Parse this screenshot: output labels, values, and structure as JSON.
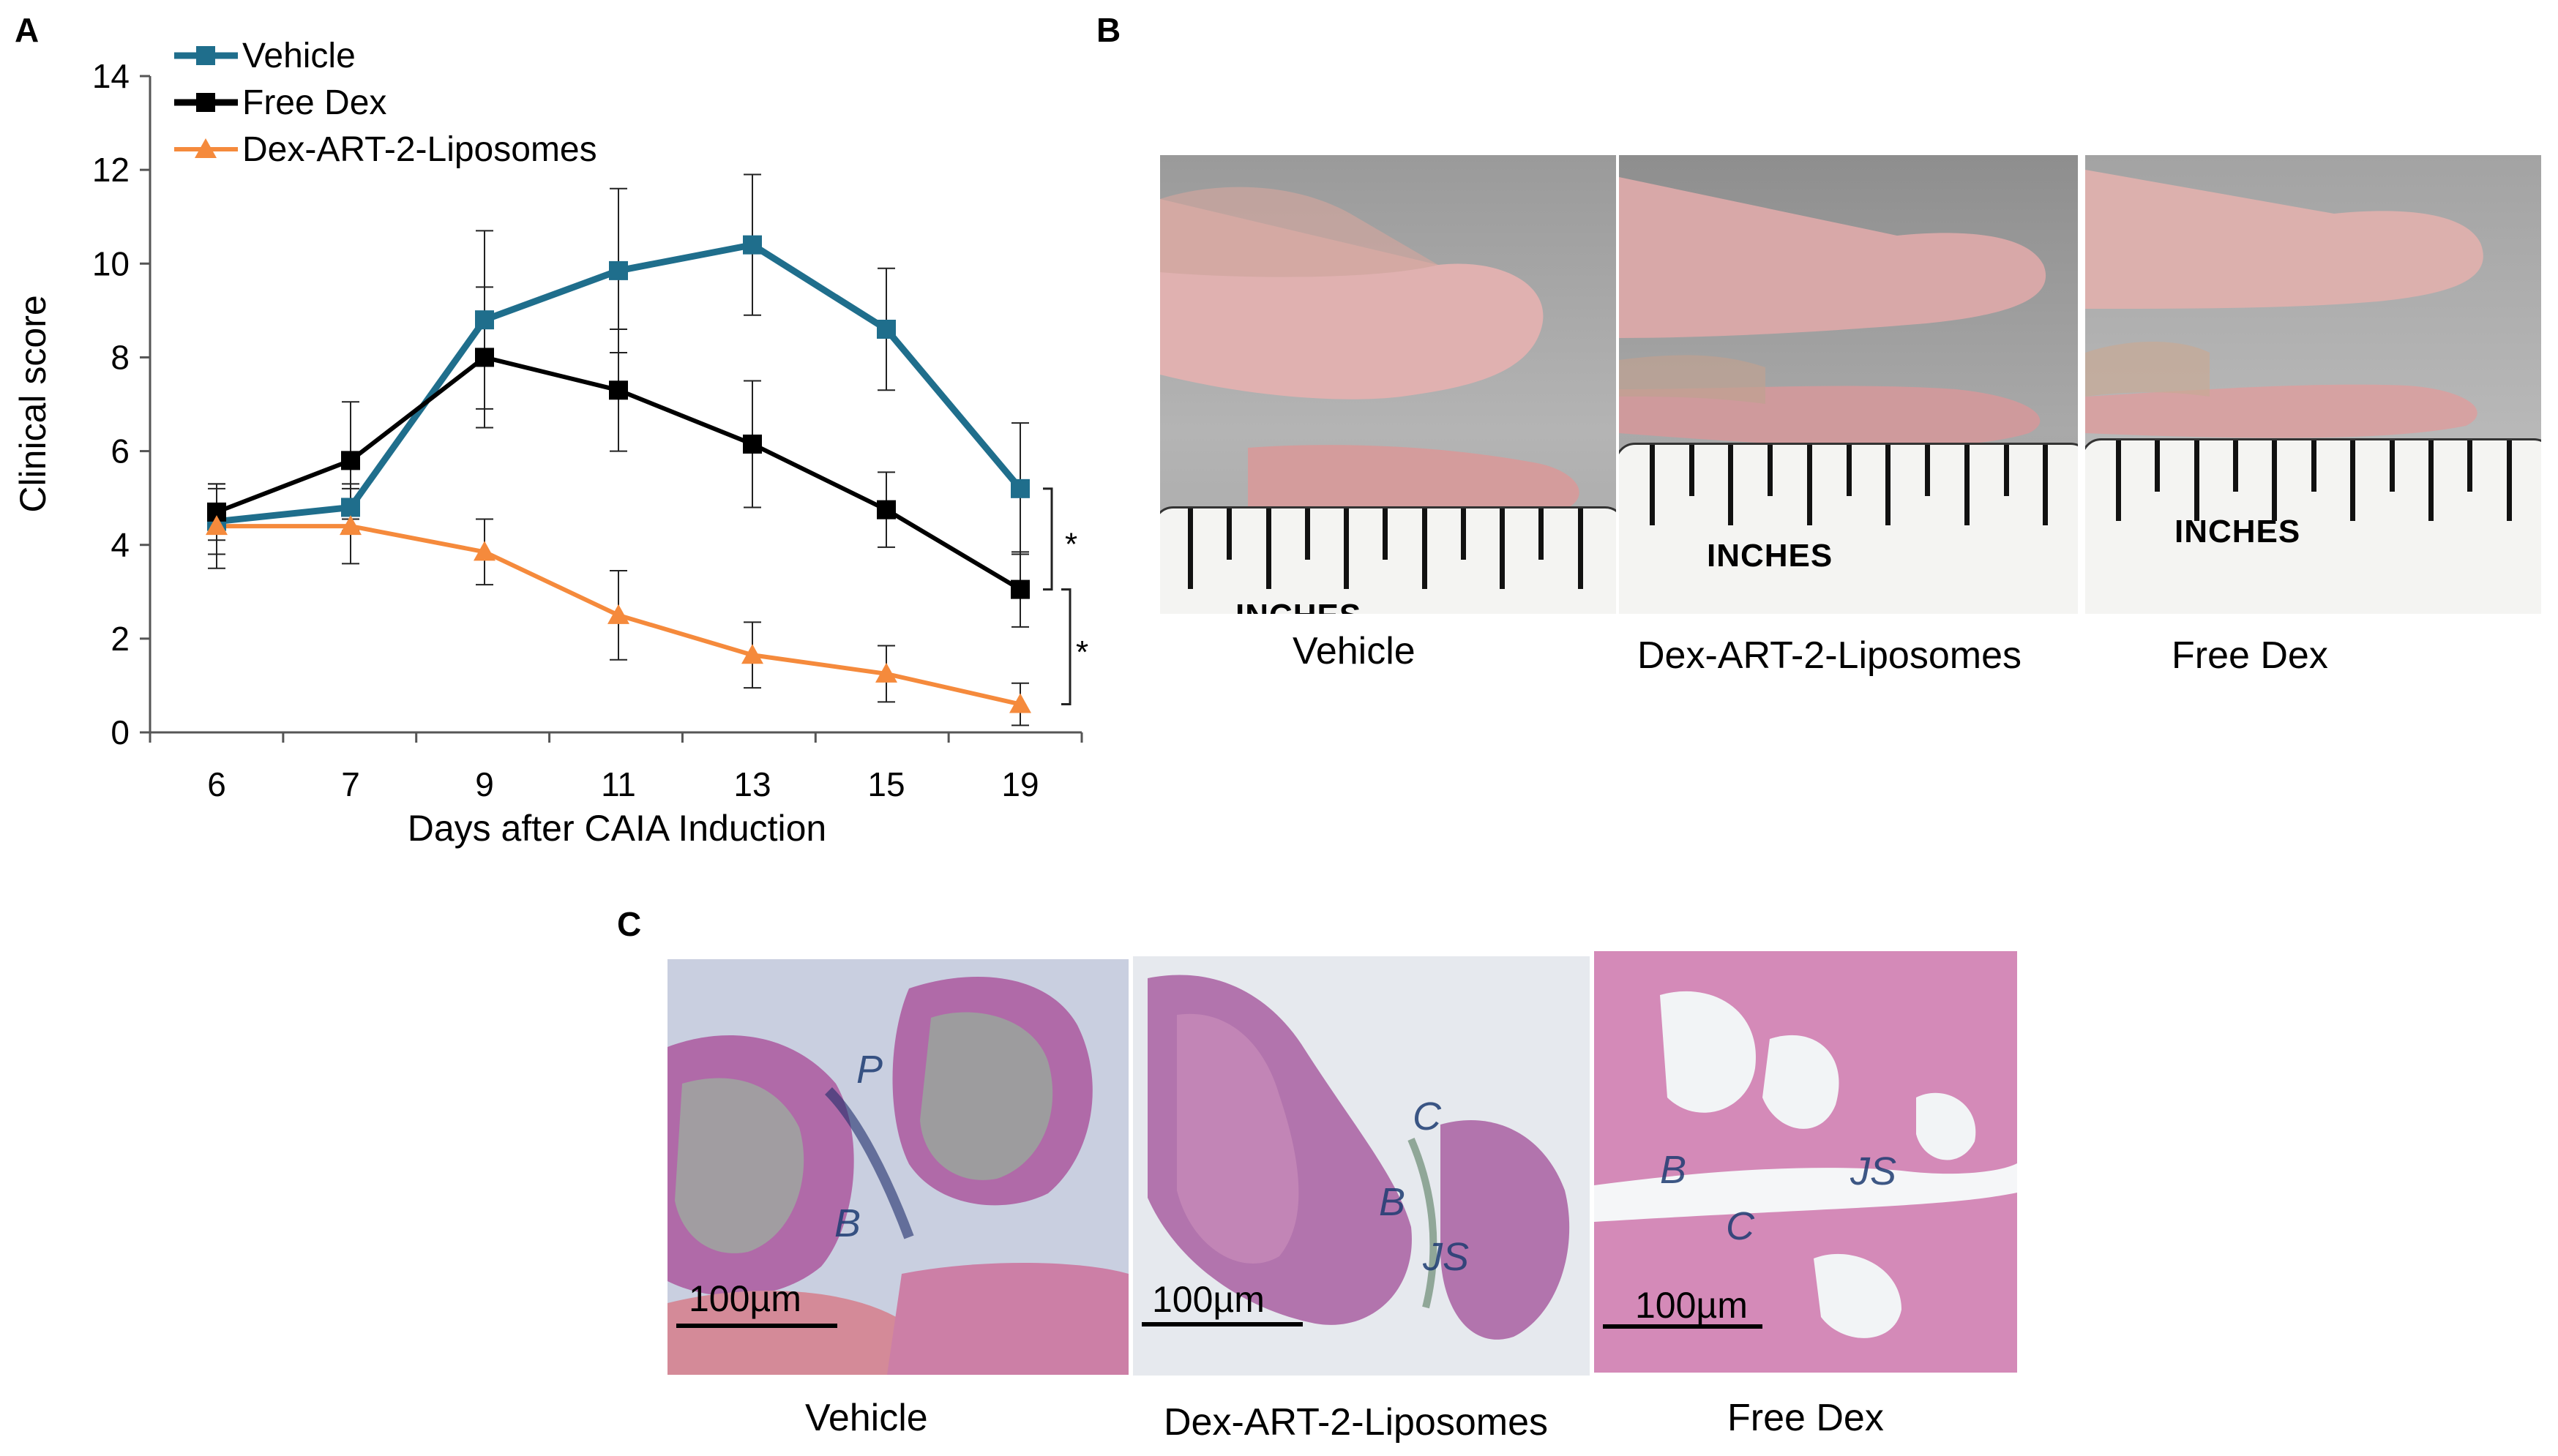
{
  "panels": {
    "a_label": "A",
    "b_label": "B",
    "c_label": "C"
  },
  "chart_data": {
    "type": "line",
    "xlabel": "Days after CAIA Induction",
    "ylabel": "Clinical score",
    "ylim": [
      0,
      14
    ],
    "yticks": [
      0,
      2,
      4,
      6,
      8,
      10,
      12,
      14
    ],
    "categories": [
      "6",
      "7",
      "9",
      "11",
      "13",
      "15",
      "19"
    ],
    "legend_position": "top-left",
    "grid": false,
    "series": [
      {
        "name": "Vehicle",
        "color": "#1f6e8c",
        "marker": "square",
        "values": [
          4.5,
          4.8,
          8.8,
          9.85,
          10.4,
          8.6,
          5.2
        ],
        "errors": [
          0.7,
          0.5,
          1.9,
          1.75,
          1.5,
          1.3,
          1.4
        ]
      },
      {
        "name": "Free Dex",
        "color": "#000000",
        "marker": "square",
        "values": [
          4.7,
          5.8,
          8.0,
          7.3,
          6.15,
          4.75,
          3.05
        ],
        "errors": [
          0.6,
          1.25,
          1.5,
          1.3,
          1.35,
          0.8,
          0.8
        ]
      },
      {
        "name": "Dex-ART-2-Liposomes",
        "color": "#f58a3c",
        "marker": "triangle",
        "values": [
          4.4,
          4.4,
          3.85,
          2.5,
          1.65,
          1.25,
          0.6
        ],
        "errors": [
          0.9,
          0.8,
          0.7,
          0.95,
          0.7,
          0.6,
          0.45
        ]
      }
    ],
    "annotations": [
      "*",
      "*"
    ]
  },
  "photos_b": {
    "captions": [
      "Vehicle",
      "Dex-ART-2-Liposomes",
      "Free Dex"
    ],
    "ruler_text": [
      "INCHES",
      "INCHES",
      "INCHES"
    ],
    "partial_ruler_text": "INCHES"
  },
  "histology_c": {
    "captions": [
      "Vehicle",
      "Dex-ART-2-Liposomes",
      "Free Dex"
    ],
    "scale_labels": [
      "100µm",
      "100µm",
      "100µm"
    ],
    "letters_1": [
      "P",
      "B"
    ],
    "letters_2": [
      "C",
      "B",
      "JS"
    ],
    "letters_3": [
      "B",
      "JS",
      "C"
    ]
  }
}
